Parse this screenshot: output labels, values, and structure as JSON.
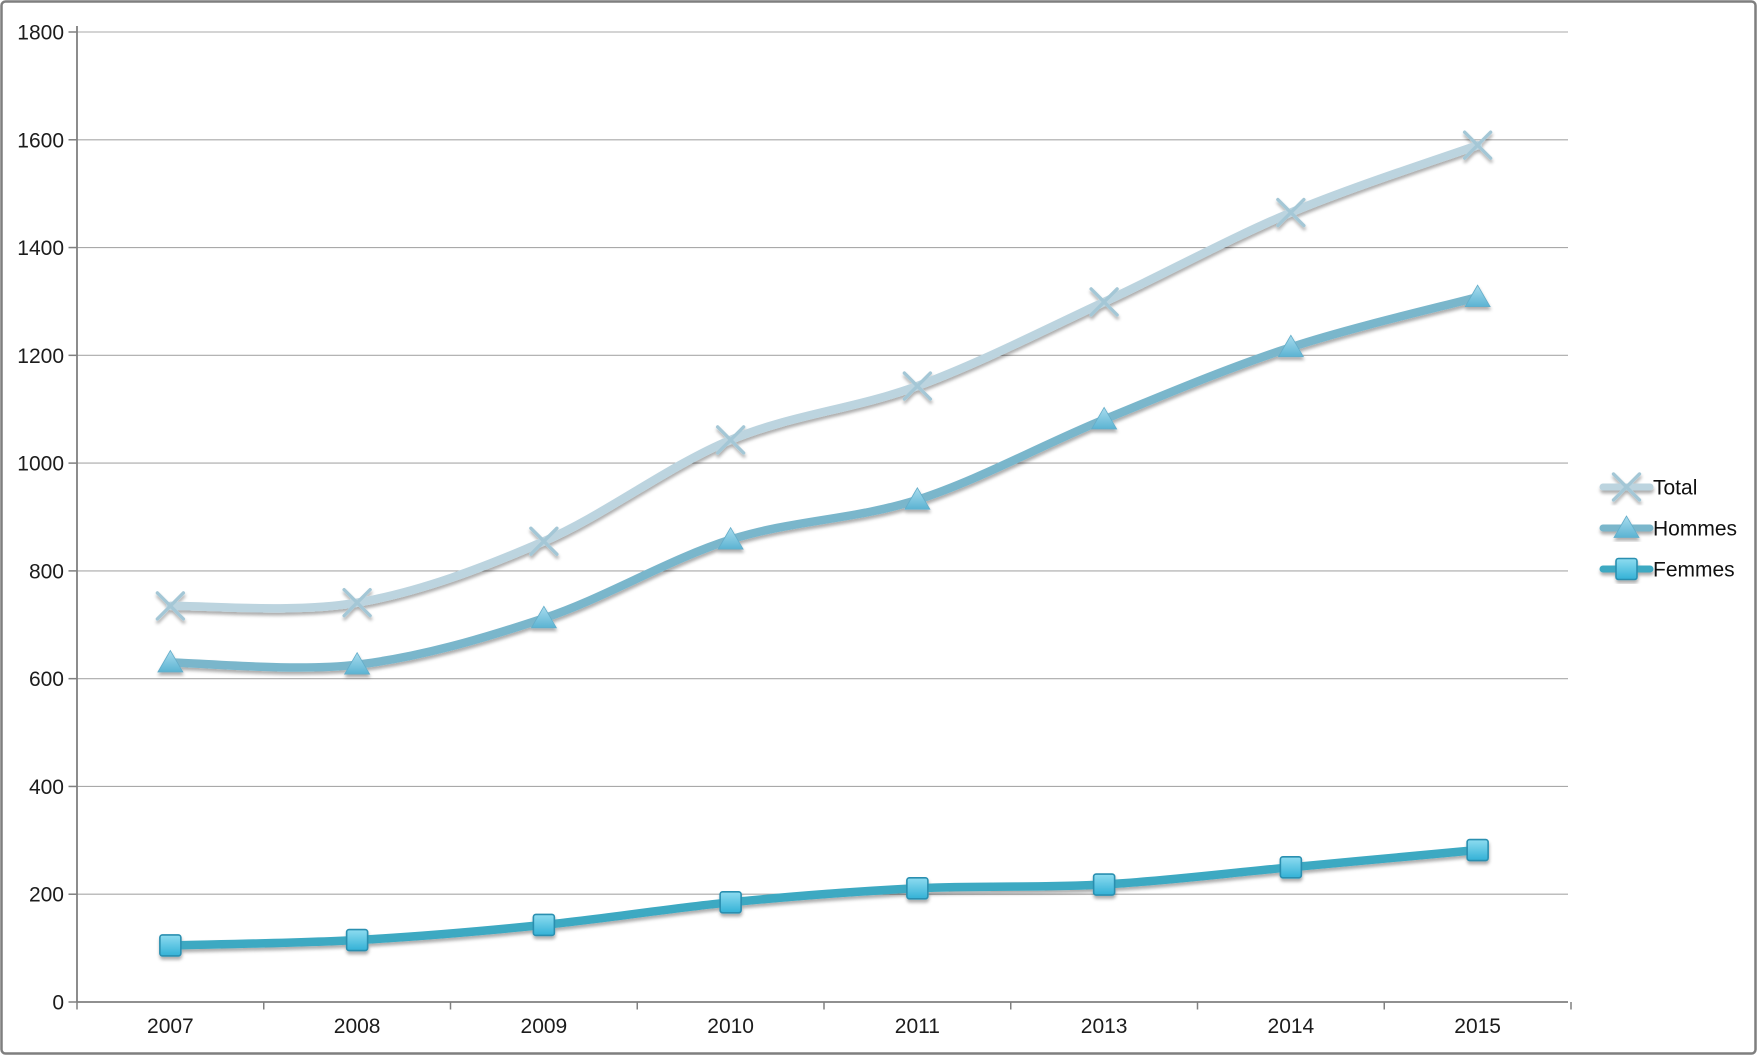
{
  "chart_data": {
    "type": "line",
    "title": "",
    "xlabel": "",
    "ylabel": "",
    "categories": [
      "2007",
      "2008",
      "2009",
      "2010",
      "2011",
      "2013",
      "2014",
      "2015"
    ],
    "series": [
      {
        "name": "Total",
        "marker": "x",
        "values": [
          735,
          741,
          855,
          1043,
          1143,
          1299,
          1465,
          1590
        ],
        "line_color": "#bcd4df",
        "marker_stroke": "#a4c7d6",
        "marker_fill_top": "#c3d9e3",
        "marker_fill_bottom": "#a4c7d6"
      },
      {
        "name": "Hommes",
        "marker": "triangle",
        "values": [
          630,
          626,
          712,
          858,
          932,
          1081,
          1215,
          1308
        ],
        "line_color": "#7ab6cb",
        "marker_stroke": "#64adc9",
        "marker_fill_top": "#a9dcee",
        "marker_fill_bottom": "#5bb3d2"
      },
      {
        "name": "Femmes",
        "marker": "square",
        "values": [
          105,
          115,
          143,
          185,
          211,
          218,
          250,
          282
        ],
        "line_color": "#3ea9c2",
        "marker_stroke": "#2a8fb0",
        "marker_fill_top": "#8edcf0",
        "marker_fill_bottom": "#33b1d6"
      }
    ],
    "ylim": [
      0,
      1800
    ],
    "ytick_step": 200,
    "y_tick_labels": [
      "0",
      "200",
      "400",
      "600",
      "800",
      "1000",
      "1200",
      "1400",
      "1600",
      "1800"
    ],
    "grid": "horizontal",
    "legend_position": "right",
    "legend_items": [
      "Total",
      "Hommes",
      "Femmes"
    ]
  },
  "colors": {
    "background": "#ffffff",
    "gridline": "#a9a9a9",
    "axis_line": "#808080",
    "frame_border": "#7f7f7f",
    "tick_text": "#1c1c1c",
    "legend_text": "#111111"
  }
}
